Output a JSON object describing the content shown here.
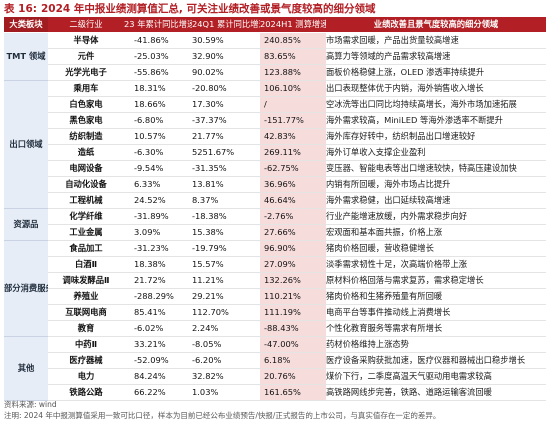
{
  "title": {
    "label": "表 16:",
    "text": "2024 年中报业绩测算值汇总, 可关注业绩改善或景气度较高的细分领域"
  },
  "header": {
    "sector": "大类板块",
    "industry": "二级行业",
    "col1": "23 年累计同比增速",
    "col2": "24Q1 累计同比增速",
    "col3": "2024H1 测算增速",
    "note": "业绩改善且景气度较高的细分领域"
  },
  "groups": [
    {
      "sector": "TMT 领域",
      "rows": [
        {
          "industry": "半导体",
          "c1": "-41.86%",
          "c2": "30.59%",
          "c3": "240.85%",
          "note": "市场需求回暖，产品出货量较高增速"
        },
        {
          "industry": "元件",
          "c1": "-25.03%",
          "c2": "32.90%",
          "c3": "83.65%",
          "note": "高算力等领域的产品需求较高增速"
        },
        {
          "industry": "光学光电子",
          "c1": "-55.86%",
          "c2": "90.02%",
          "c3": "123.88%",
          "note": "面板价格稳健上涨，OLED 渗透率持续提升"
        }
      ]
    },
    {
      "sector": "出口领域",
      "rows": [
        {
          "industry": "乘用车",
          "c1": "18.31%",
          "c2": "-20.80%",
          "c3": "106.10%",
          "note": "出口表现整体优于内销，海外销售收入增长"
        },
        {
          "industry": "白色家电",
          "c1": "18.66%",
          "c2": "17.30%",
          "c3": "/",
          "note": "空冰洗等出口同比均持续高增长，海外市场加速拓展"
        },
        {
          "industry": "黑色家电",
          "c1": "-6.80%",
          "c2": "-37.37%",
          "c3": "-151.77%",
          "note": "海外需求较高，MiniLED 等海外渗透率不断提升"
        },
        {
          "industry": "纺织制造",
          "c1": "10.57%",
          "c2": "21.77%",
          "c3": "42.83%",
          "note": "海外库存好转中，纺织制品出口增速较好"
        },
        {
          "industry": "造纸",
          "c1": "-6.30%",
          "c2": "5251.67%",
          "c3": "269.11%",
          "note": "海外订单收入支撑企业盈利"
        },
        {
          "industry": "电网设备",
          "c1": "-9.54%",
          "c2": "-31.35%",
          "c3": "-62.75%",
          "note": "变压器、智能电表等出口增速较快，特高压建设加快"
        },
        {
          "industry": "自动化设备",
          "c1": "6.33%",
          "c2": "13.81%",
          "c3": "36.96%",
          "note": "内销有所回暖，海外市场占比提升"
        },
        {
          "industry": "工程机械",
          "c1": "24.52%",
          "c2": "8.37%",
          "c3": "46.64%",
          "note": "海外需求稳健，出口延续较高增速"
        }
      ]
    },
    {
      "sector": "资源品",
      "rows": [
        {
          "industry": "化学纤维",
          "c1": "-31.89%",
          "c2": "-18.38%",
          "c3": "-2.76%",
          "note": "行业产能增速放缓，内外需求稳步向好"
        },
        {
          "industry": "工业金属",
          "c1": "3.09%",
          "c2": "15.38%",
          "c3": "27.66%",
          "note": "宏观面和基本面共振，价格上涨"
        }
      ]
    },
    {
      "sector": "部分消费服务",
      "rows": [
        {
          "industry": "食品加工",
          "c1": "-31.23%",
          "c2": "-19.79%",
          "c3": "96.90%",
          "note": "猪肉价格回暖，营收稳健增长"
        },
        {
          "industry": "白酒Ⅱ",
          "c1": "18.38%",
          "c2": "15.57%",
          "c3": "27.09%",
          "note": "淡季需求韧性十足，次高端价格带上涨"
        },
        {
          "industry": "调味发酵品Ⅱ",
          "c1": "21.72%",
          "c2": "11.21%",
          "c3": "132.26%",
          "note": "原材料价格回落与需求复苏，需求稳定增长"
        },
        {
          "industry": "养殖业",
          "c1": "-288.29%",
          "c2": "29.21%",
          "c3": "110.21%",
          "note": "猪肉价格和生猪养殖量有所回暖"
        },
        {
          "industry": "互联网电商",
          "c1": "85.41%",
          "c2": "112.70%",
          "c3": "111.19%",
          "note": "电商平台等事件推动线上消费增长"
        },
        {
          "industry": "教育",
          "c1": "-6.02%",
          "c2": "2.24%",
          "c3": "-88.43%",
          "note": "个性化教育服务等需求有所增长"
        }
      ]
    },
    {
      "sector": "其他",
      "rows": [
        {
          "industry": "中药Ⅱ",
          "c1": "33.21%",
          "c2": "-8.05%",
          "c3": "-47.00%",
          "note": "药材价格维持上涨态势"
        },
        {
          "industry": "医疗器械",
          "c1": "-52.09%",
          "c2": "-6.20%",
          "c3": "6.18%",
          "note": "医疗设备采购获批加速，医疗仪器和器械出口稳步增长"
        },
        {
          "industry": "电力",
          "c1": "84.24%",
          "c2": "32.82%",
          "c3": "20.76%",
          "note": "煤价下行，二季度高温天气驱动用电需求较高"
        },
        {
          "industry": "铁路公路",
          "c1": "66.22%",
          "c2": "1.03%",
          "c3": "161.65%",
          "note": "高铁路网线步完善，铁路、道路运输客流回暖"
        }
      ]
    }
  ],
  "footer": {
    "source": "资料来源: wind",
    "note": "注明: 2024 年中报测算值采用一致可比口径，样本为目前已经公布业绩预告/快报/正式报告的上市公司，与真实值存在一定的差异。"
  }
}
